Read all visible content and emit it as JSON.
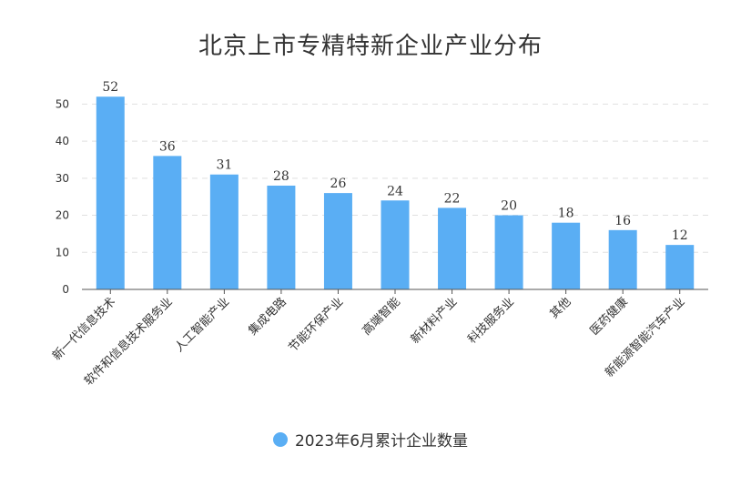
{
  "colors": {
    "bar": "#5aaef4",
    "axis": "#555555",
    "grid": "#e0e0e0",
    "text": "#333333"
  },
  "chart_data": {
    "type": "bar",
    "title": "北京上市专精特新企业产业分布",
    "categories": [
      "新一代信息技术",
      "软件和信息技术服务业",
      "人工智能产业",
      "集成电路",
      "节能环保产业",
      "高端智能",
      "新材料产业",
      "科技服务业",
      "其他",
      "医药健康",
      "新能源智能汽车产业"
    ],
    "series": [
      {
        "name": "2023年6月累计企业数量",
        "values": [
          52,
          36,
          31,
          28,
          26,
          24,
          22,
          20,
          18,
          16,
          12
        ]
      }
    ],
    "y_ticks": [
      "0",
      "10",
      "20",
      "30",
      "40",
      "50"
    ],
    "ylim": [
      0,
      55
    ],
    "grid": true,
    "legend_position": "bottom"
  }
}
